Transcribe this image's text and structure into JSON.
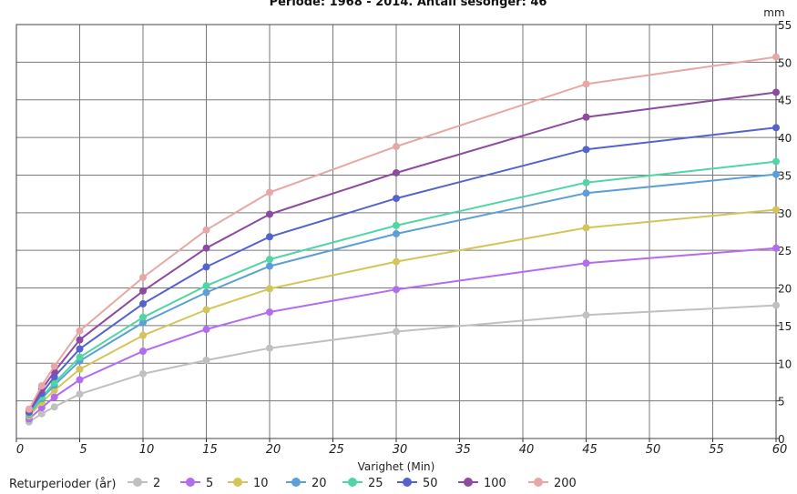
{
  "chart_data": {
    "type": "line",
    "title": "Periode: 1968 - 2014. Antall sesonger: 46",
    "xlabel": "Varighet (Min)",
    "ylabel": "mm",
    "xlim": [
      0,
      60
    ],
    "ylim": [
      0,
      55
    ],
    "x_ticks": [
      "0",
      "5",
      "10",
      "15",
      "20",
      "25",
      "30",
      "35",
      "40",
      "45",
      "50",
      "55",
      "60"
    ],
    "y_ticks": [
      "0",
      "5",
      "10",
      "15",
      "20",
      "25",
      "30",
      "35",
      "40",
      "45",
      "50",
      "55"
    ],
    "grid": true,
    "legend_title": "Returperioder (år)",
    "legend_position": "bottom",
    "x": [
      1,
      2,
      3,
      5,
      10,
      15,
      20,
      30,
      45,
      60
    ],
    "series": [
      {
        "name": "2",
        "color": "#c0c0c0",
        "values": [
          2.2,
          3.3,
          4.2,
          5.9,
          8.6,
          10.4,
          12.0,
          14.2,
          16.4,
          17.7
        ]
      },
      {
        "name": "5",
        "color": "#b36bf0",
        "values": [
          2.6,
          4.1,
          5.5,
          7.8,
          11.6,
          14.5,
          16.8,
          19.8,
          23.3,
          25.3
        ]
      },
      {
        "name": "10",
        "color": "#d4c55a",
        "values": [
          3.0,
          4.8,
          6.4,
          9.2,
          13.7,
          17.1,
          19.9,
          23.5,
          28.0,
          30.4
        ]
      },
      {
        "name": "20",
        "color": "#5b9fd6",
        "values": [
          3.2,
          5.3,
          7.1,
          10.3,
          15.4,
          19.4,
          22.9,
          27.2,
          32.6,
          35.1
        ]
      },
      {
        "name": "25",
        "color": "#4fd6a4",
        "values": [
          3.3,
          5.5,
          7.4,
          10.8,
          16.1,
          20.3,
          23.8,
          28.3,
          34.0,
          36.8
        ]
      },
      {
        "name": "50",
        "color": "#5563cf",
        "values": [
          3.5,
          6.0,
          8.2,
          11.9,
          17.9,
          22.8,
          26.8,
          31.9,
          38.4,
          41.3
        ]
      },
      {
        "name": "100",
        "color": "#8e4aa0",
        "values": [
          3.7,
          6.5,
          8.9,
          13.1,
          19.6,
          25.3,
          29.8,
          35.3,
          42.7,
          46.0
        ]
      },
      {
        "name": "200",
        "color": "#e8a7a7",
        "values": [
          3.9,
          7.0,
          9.6,
          14.3,
          21.4,
          27.7,
          32.7,
          38.8,
          47.1,
          50.7
        ]
      }
    ]
  }
}
